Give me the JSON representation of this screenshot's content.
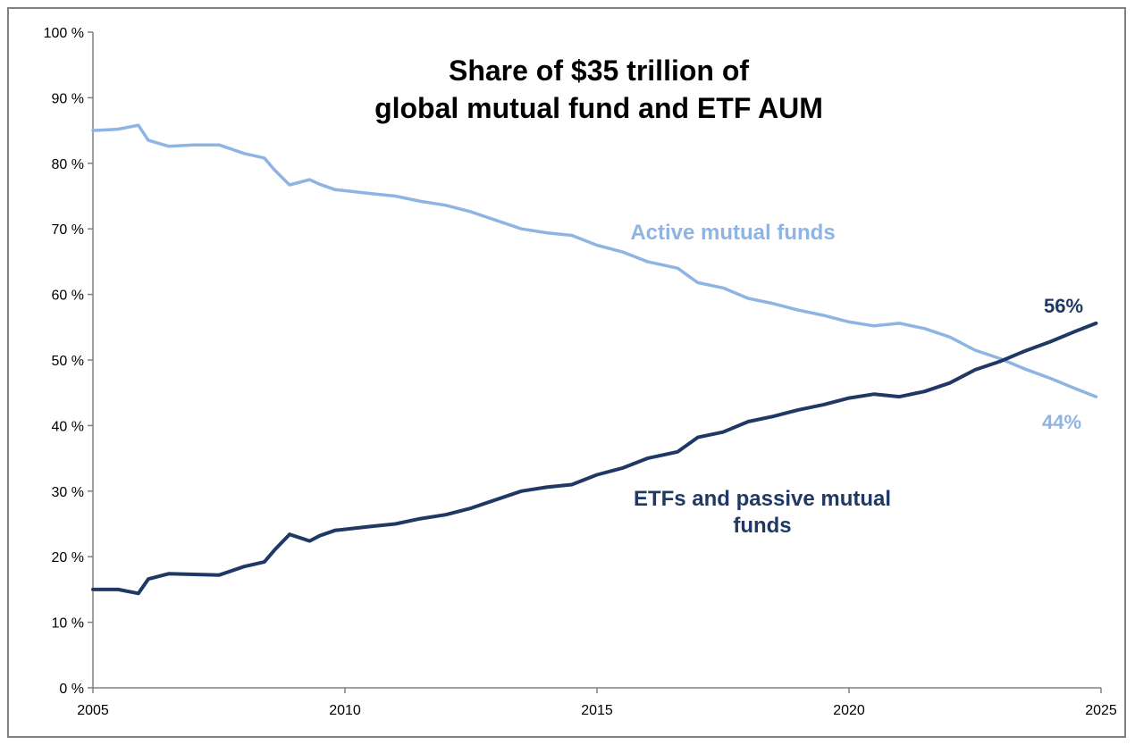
{
  "chart_data": {
    "type": "line",
    "title": [
      "Share of $35 trillion of",
      "global mutual fund and ETF AUM"
    ],
    "xlabel": "",
    "ylabel": "",
    "xlim": [
      2005,
      2025
    ],
    "ylim": [
      0,
      100
    ],
    "x_ticks": [
      "2005",
      "2010",
      "2015",
      "2020",
      "2025"
    ],
    "y_ticks": [
      "0 %",
      "10 %",
      "20 %",
      "30 %",
      "40 %",
      "50 %",
      "60 %",
      "70 %",
      "80 %",
      "90 %",
      "100 %"
    ],
    "grid": false,
    "series": [
      {
        "name": "Active mutual funds",
        "color": "#8eb4e3",
        "end_label": "44%",
        "points": [
          [
            2005.0,
            85.0
          ],
          [
            2005.5,
            85.2
          ],
          [
            2005.9,
            85.8
          ],
          [
            2006.1,
            83.5
          ],
          [
            2006.5,
            82.6
          ],
          [
            2007.0,
            82.8
          ],
          [
            2007.5,
            82.8
          ],
          [
            2008.0,
            81.5
          ],
          [
            2008.4,
            80.8
          ],
          [
            2008.6,
            79.0
          ],
          [
            2008.9,
            76.7
          ],
          [
            2009.3,
            77.5
          ],
          [
            2009.5,
            76.8
          ],
          [
            2009.8,
            76.0
          ],
          [
            2010.5,
            75.4
          ],
          [
            2011.0,
            75.0
          ],
          [
            2011.5,
            74.2
          ],
          [
            2012.0,
            73.6
          ],
          [
            2012.5,
            72.6
          ],
          [
            2013.0,
            71.3
          ],
          [
            2013.5,
            70.0
          ],
          [
            2014.0,
            69.4
          ],
          [
            2014.5,
            69.0
          ],
          [
            2015.0,
            67.5
          ],
          [
            2015.5,
            66.5
          ],
          [
            2016.0,
            65.0
          ],
          [
            2016.6,
            64.0
          ],
          [
            2017.0,
            61.8
          ],
          [
            2017.5,
            61.0
          ],
          [
            2018.0,
            59.4
          ],
          [
            2018.5,
            58.6
          ],
          [
            2019.0,
            57.6
          ],
          [
            2019.5,
            56.8
          ],
          [
            2020.0,
            55.8
          ],
          [
            2020.5,
            55.2
          ],
          [
            2021.0,
            55.6
          ],
          [
            2021.5,
            54.8
          ],
          [
            2022.0,
            53.5
          ],
          [
            2022.5,
            51.5
          ],
          [
            2023.0,
            50.2
          ],
          [
            2023.5,
            48.6
          ],
          [
            2024.0,
            47.2
          ],
          [
            2024.5,
            45.6
          ],
          [
            2024.9,
            44.4
          ]
        ]
      },
      {
        "name": "ETFs and passive mutual funds",
        "color": "#1f3864",
        "end_label": "56%",
        "points": [
          [
            2005.0,
            15.0
          ],
          [
            2005.5,
            15.0
          ],
          [
            2005.9,
            14.4
          ],
          [
            2006.1,
            16.6
          ],
          [
            2006.5,
            17.4
          ],
          [
            2007.0,
            17.3
          ],
          [
            2007.5,
            17.2
          ],
          [
            2008.0,
            18.5
          ],
          [
            2008.4,
            19.2
          ],
          [
            2008.6,
            21.0
          ],
          [
            2008.9,
            23.4
          ],
          [
            2009.3,
            22.4
          ],
          [
            2009.5,
            23.2
          ],
          [
            2009.8,
            24.0
          ],
          [
            2010.5,
            24.6
          ],
          [
            2011.0,
            25.0
          ],
          [
            2011.5,
            25.8
          ],
          [
            2012.0,
            26.4
          ],
          [
            2012.5,
            27.4
          ],
          [
            2013.0,
            28.7
          ],
          [
            2013.5,
            30.0
          ],
          [
            2014.0,
            30.6
          ],
          [
            2014.5,
            31.0
          ],
          [
            2015.0,
            32.5
          ],
          [
            2015.5,
            33.5
          ],
          [
            2016.0,
            35.0
          ],
          [
            2016.6,
            36.0
          ],
          [
            2017.0,
            38.2
          ],
          [
            2017.5,
            39.0
          ],
          [
            2018.0,
            40.6
          ],
          [
            2018.5,
            41.4
          ],
          [
            2019.0,
            42.4
          ],
          [
            2019.5,
            43.2
          ],
          [
            2020.0,
            44.2
          ],
          [
            2020.5,
            44.8
          ],
          [
            2021.0,
            44.4
          ],
          [
            2021.5,
            45.2
          ],
          [
            2022.0,
            46.5
          ],
          [
            2022.5,
            48.5
          ],
          [
            2023.0,
            49.8
          ],
          [
            2023.5,
            51.4
          ],
          [
            2024.0,
            52.8
          ],
          [
            2024.5,
            54.4
          ],
          [
            2024.9,
            55.6
          ]
        ]
      }
    ]
  }
}
